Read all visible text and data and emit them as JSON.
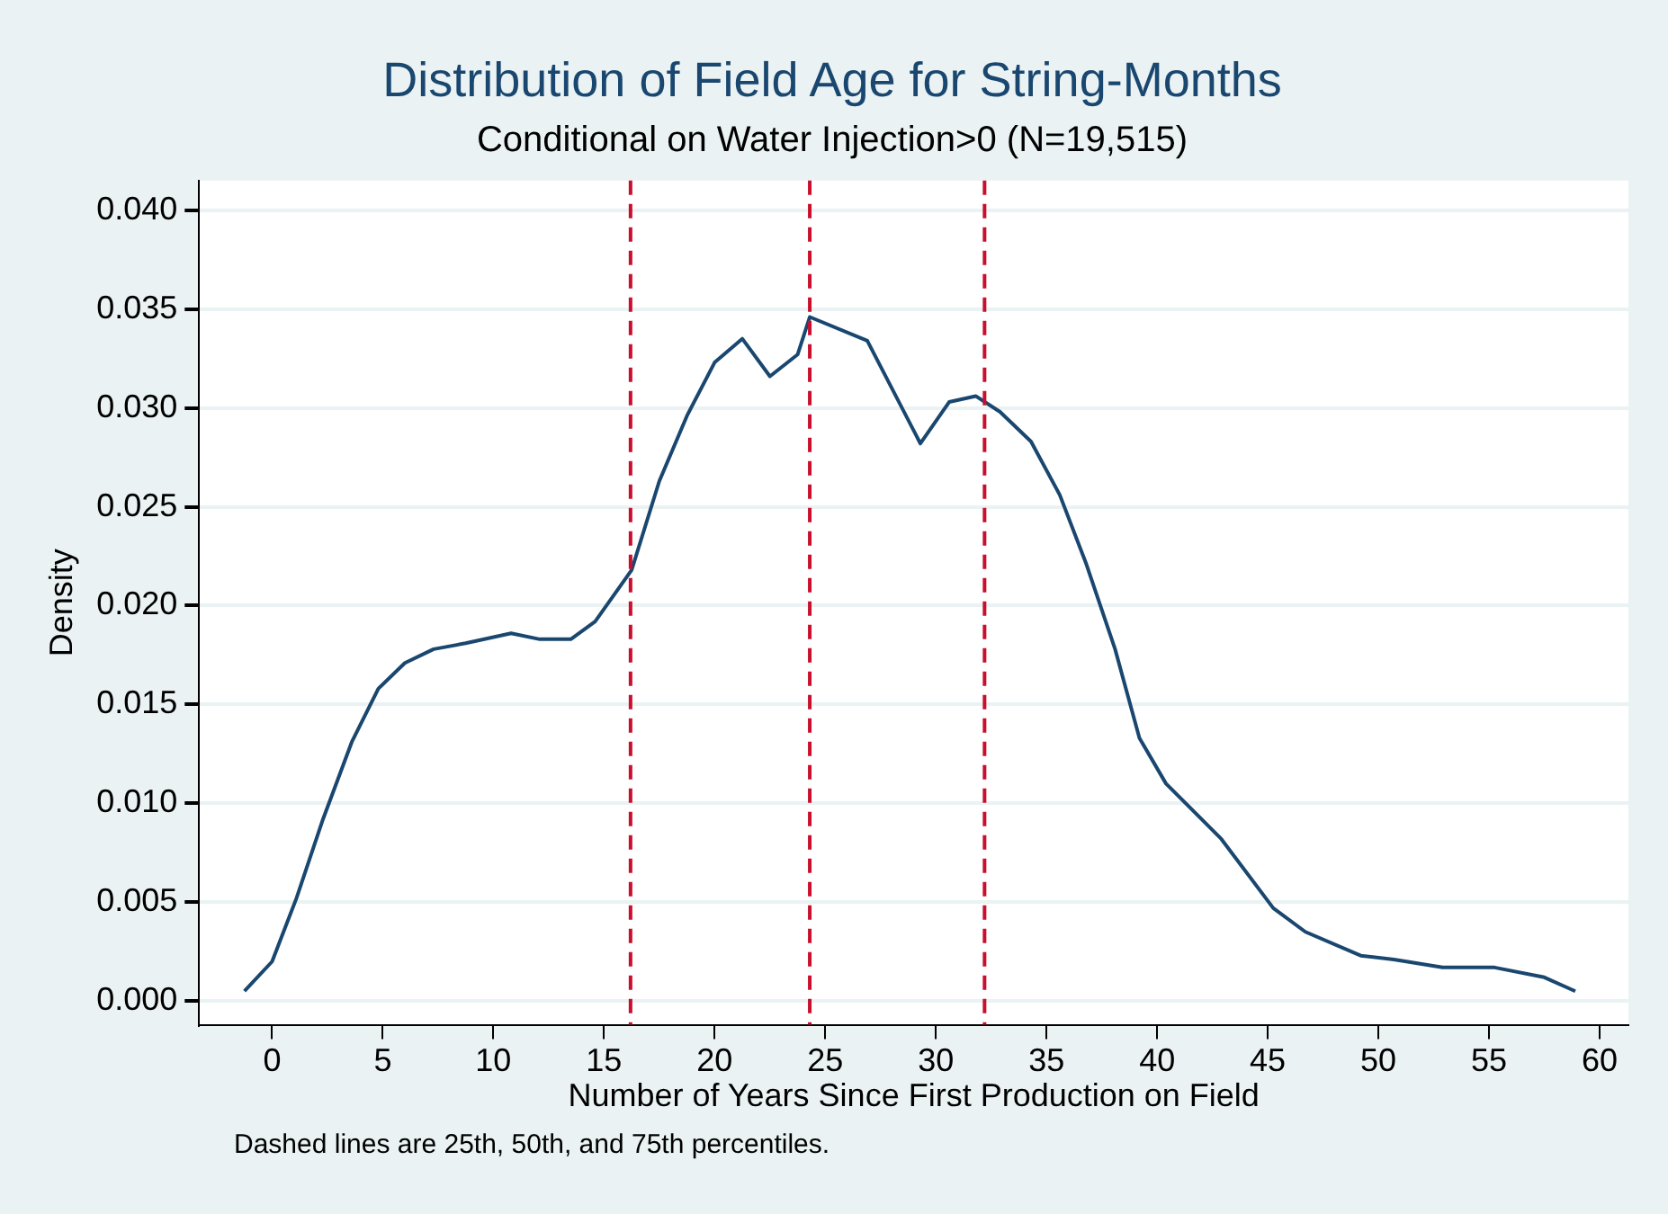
{
  "chart_data": {
    "type": "line",
    "title": "Distribution of Field Age for String-Months",
    "subtitle": "Conditional on Water Injection>0 (N=19,515)",
    "xlabel": "Number of Years Since First Production on Field",
    "ylabel": "Density",
    "annotations": [
      "Dashed lines are 25th, 50th, and 75th percentiles."
    ],
    "x": [
      -1.25,
      0,
      1.1,
      2.3,
      3.6,
      4.8,
      6,
      7.3,
      8.75,
      10.8,
      12.1,
      13.5,
      14.6,
      16.25,
      17.5,
      18.75,
      20,
      21.25,
      22.5,
      23.75,
      24.3,
      26.9,
      29.3,
      30.6,
      31.8,
      32.9,
      34.3,
      35.6,
      36.8,
      38.1,
      39.2,
      40.4,
      42.9,
      45.25,
      46.7,
      49.2,
      50.7,
      52.9,
      55.25,
      57.5,
      58.9
    ],
    "series": [
      {
        "color": "#1a476f",
        "values": [
          0.0005,
          0.002,
          0.0052,
          0.0092,
          0.0131,
          0.0158,
          0.0171,
          0.0178,
          0.0181,
          0.0186,
          0.0183,
          0.0183,
          0.0192,
          0.0218,
          0.0263,
          0.0296,
          0.0323,
          0.0335,
          0.0316,
          0.0327,
          0.0346,
          0.0334,
          0.0282,
          0.0303,
          0.0306,
          0.0298,
          0.0283,
          0.0256,
          0.0221,
          0.0178,
          0.0133,
          0.011,
          0.0082,
          0.0047,
          0.0035,
          0.0023,
          0.0021,
          0.0017,
          0.0017,
          0.0012,
          0.0005
        ]
      }
    ],
    "xlim": [
      -3.3,
      61.3
    ],
    "xticks": [
      0,
      5,
      10,
      15,
      20,
      25,
      30,
      35,
      40,
      45,
      50,
      55,
      60
    ],
    "ylim": [
      -0.0012,
      0.0415
    ],
    "yticks": [
      {
        "value": 0,
        "label": "0.000"
      },
      {
        "value": 0.005,
        "label": "0.005"
      },
      {
        "value": 0.01,
        "label": "0.010"
      },
      {
        "value": 0.015,
        "label": "0.015"
      },
      {
        "value": 0.02,
        "label": "0.020"
      },
      {
        "value": 0.025,
        "label": "0.025"
      },
      {
        "value": 0.03,
        "label": "0.030"
      },
      {
        "value": 0.035,
        "label": "0.035"
      },
      {
        "value": 0.04,
        "label": "0.040"
      }
    ],
    "ref_lines": [
      {
        "axis": "x",
        "value": 16.2,
        "color": "#c8102e",
        "line_style": "dashed"
      },
      {
        "axis": "x",
        "value": 24.3,
        "color": "#c8102e",
        "line_style": "dashed"
      },
      {
        "axis": "x",
        "value": 32.2,
        "color": "#c8102e",
        "line_style": "dashed"
      }
    ],
    "grid": "y",
    "legend": false,
    "marker": "none",
    "line_style": "solid"
  }
}
